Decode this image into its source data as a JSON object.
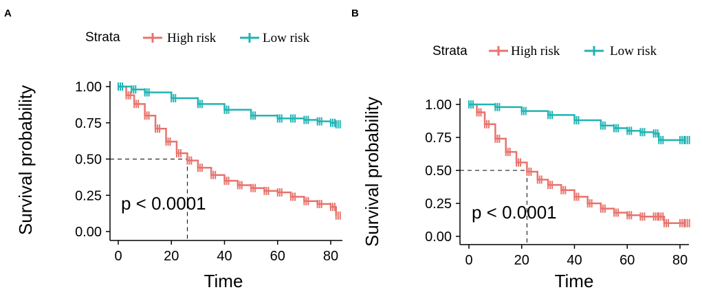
{
  "figure": {
    "panel_labels": [
      "A",
      "B"
    ]
  },
  "colors": {
    "high": "#e8736c",
    "low": "#20b3b3",
    "axis": "#000000",
    "guide": "#000000"
  },
  "chart_data": [
    {
      "type": "line",
      "chart_kind": "kaplan-meier",
      "panel": "A",
      "legend_title": "Strata",
      "legend_position": "top",
      "xlabel": "Time",
      "ylabel": "Survival probability",
      "xlim": [
        0,
        83
      ],
      "ylim": [
        0,
        1
      ],
      "xticks": [
        0,
        20,
        40,
        60,
        80
      ],
      "yticks": [
        0,
        0.25,
        0.5,
        0.75,
        1.0
      ],
      "ytick_labels": [
        "0.00",
        "0.25",
        "0.50",
        "0.75",
        "1.00"
      ],
      "pvalue_text": "p < 0.0001",
      "median_line": {
        "x": 26,
        "y": 0.5
      },
      "series": [
        {
          "name": "High risk",
          "x": [
            0,
            3,
            6,
            10,
            14,
            18,
            22,
            26,
            30,
            35,
            40,
            45,
            50,
            55,
            60,
            65,
            70,
            75,
            80,
            82
          ],
          "y": [
            1.0,
            0.94,
            0.88,
            0.8,
            0.71,
            0.62,
            0.54,
            0.49,
            0.44,
            0.39,
            0.35,
            0.32,
            0.3,
            0.28,
            0.27,
            0.24,
            0.21,
            0.19,
            0.17,
            0.11
          ]
        },
        {
          "name": "Low risk",
          "x": [
            0,
            5,
            10,
            20,
            30,
            40,
            50,
            60,
            65,
            70,
            75,
            80,
            82
          ],
          "y": [
            1.0,
            0.98,
            0.96,
            0.92,
            0.88,
            0.84,
            0.8,
            0.78,
            0.78,
            0.77,
            0.76,
            0.75,
            0.74
          ]
        }
      ]
    },
    {
      "type": "line",
      "chart_kind": "kaplan-meier",
      "panel": "B",
      "legend_title": "Strata",
      "legend_position": "top",
      "xlabel": "Time",
      "ylabel": "Survival probability",
      "xlim": [
        0,
        83
      ],
      "ylim": [
        0,
        1
      ],
      "xticks": [
        0,
        20,
        40,
        60,
        80
      ],
      "yticks": [
        0,
        0.25,
        0.5,
        0.75,
        1.0
      ],
      "ytick_labels": [
        "0.00",
        "0.25",
        "0.50",
        "0.75",
        "1.00"
      ],
      "pvalue_text": "p < 0.0001",
      "median_line": {
        "x": 22,
        "y": 0.5
      },
      "series": [
        {
          "name": "High risk",
          "x": [
            0,
            3,
            6,
            10,
            14,
            18,
            22,
            26,
            30,
            35,
            40,
            45,
            50,
            55,
            60,
            65,
            70,
            72,
            74,
            80,
            82
          ],
          "y": [
            1.0,
            0.94,
            0.85,
            0.74,
            0.64,
            0.56,
            0.49,
            0.43,
            0.39,
            0.35,
            0.3,
            0.25,
            0.21,
            0.18,
            0.16,
            0.15,
            0.15,
            0.15,
            0.1,
            0.1,
            0.1
          ]
        },
        {
          "name": "Low risk",
          "x": [
            0,
            10,
            20,
            30,
            40,
            50,
            55,
            60,
            65,
            70,
            72,
            80,
            82
          ],
          "y": [
            1.0,
            0.98,
            0.95,
            0.92,
            0.88,
            0.84,
            0.82,
            0.8,
            0.79,
            0.78,
            0.73,
            0.73,
            0.73
          ]
        }
      ]
    }
  ]
}
